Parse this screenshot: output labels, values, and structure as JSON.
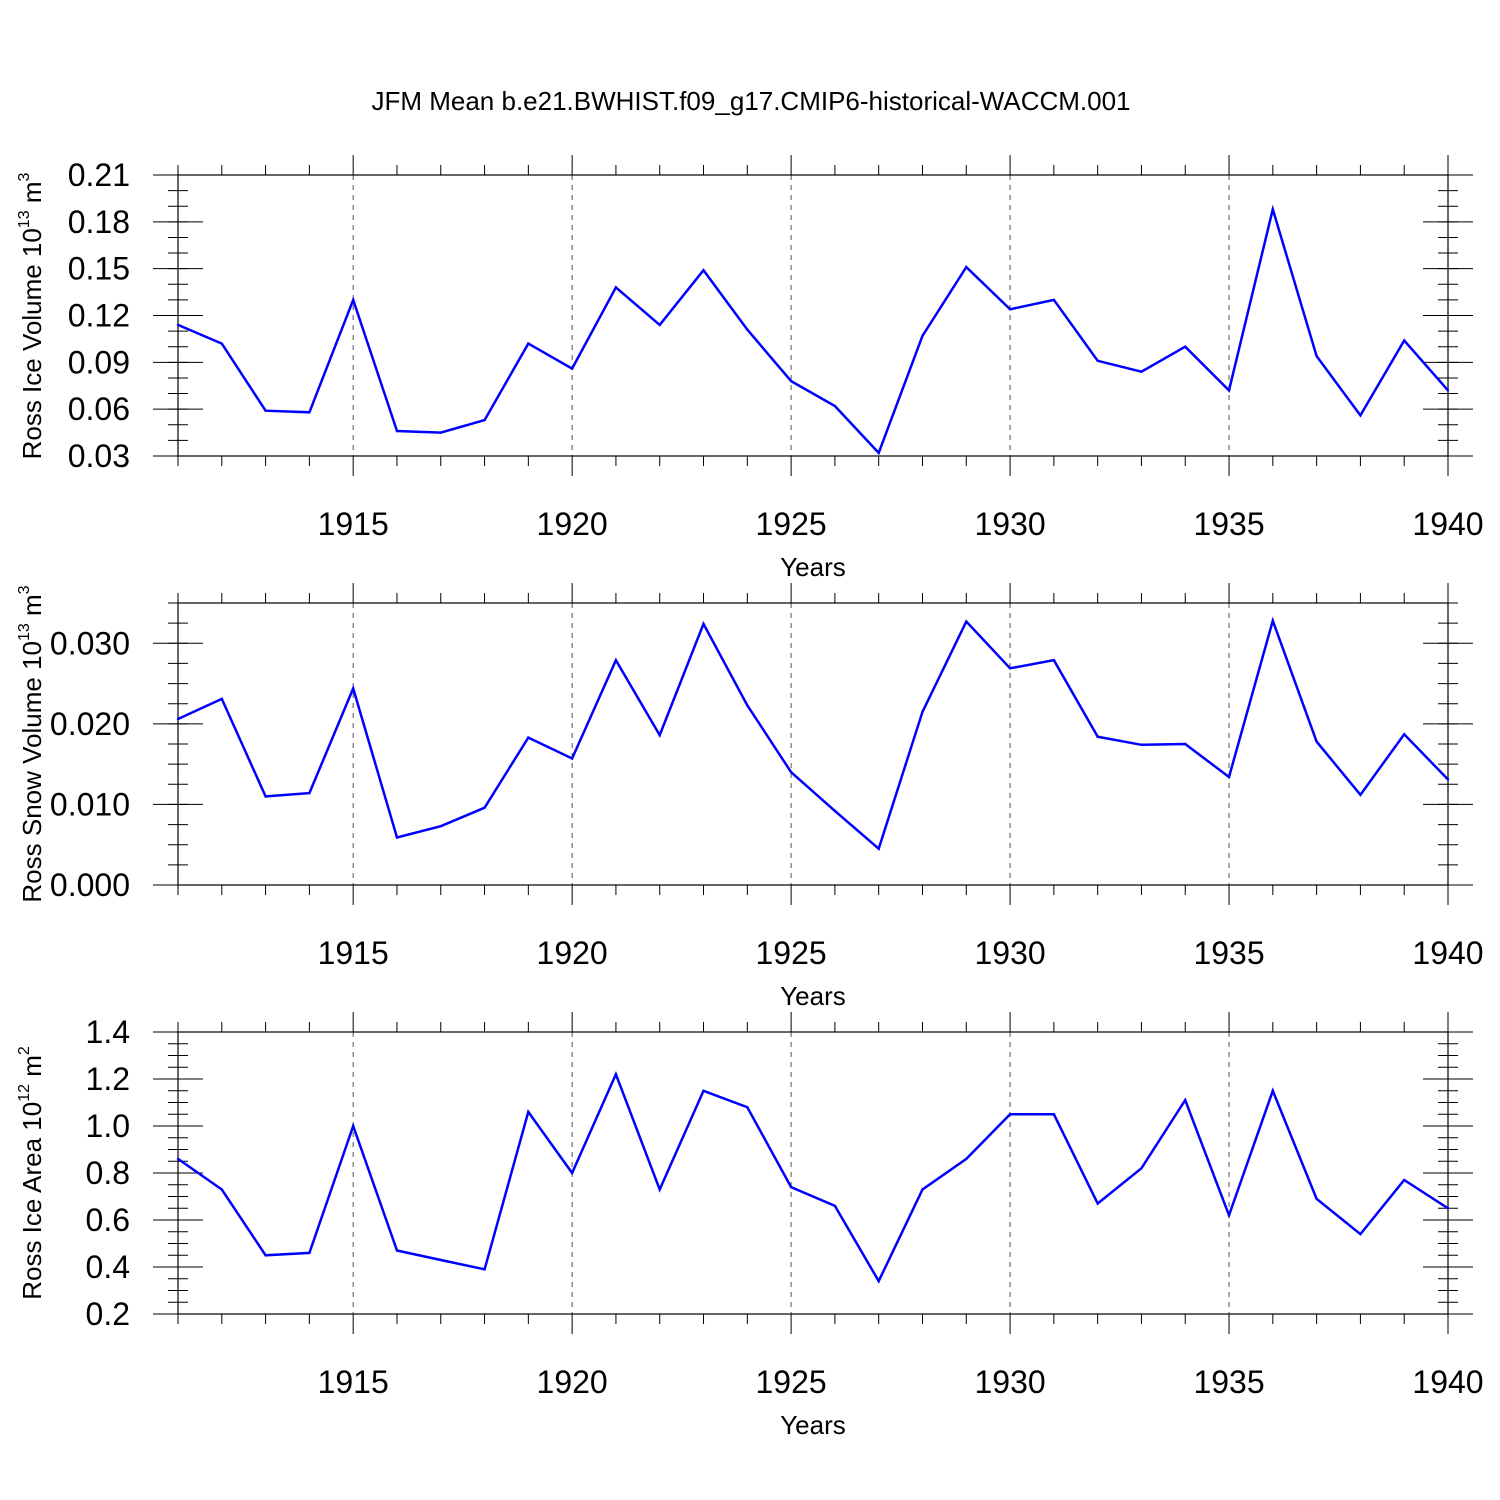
{
  "figure": {
    "title": "JFM Mean b.e21.BWHIST.f09_g17.CMIP6-historical-WACCM.001"
  },
  "chart_data": [
    {
      "type": "line",
      "ylabel": {
        "text": "Ross Ice Volume 10",
        "sup": "13",
        "unit": " m",
        "unit_sup": "3"
      },
      "xlabel": "Years",
      "xlim": [
        1911,
        1940
      ],
      "ylim": [
        0.03,
        0.21
      ],
      "yticks": [
        0.03,
        0.06,
        0.09,
        0.12,
        0.15,
        0.18,
        0.21
      ],
      "ytick_labels": [
        "0.03",
        "0.06",
        "0.09",
        "0.12",
        "0.15",
        "0.18",
        "0.21"
      ],
      "yminor_step": 0.01,
      "xticks": [
        1915,
        1920,
        1925,
        1930,
        1935,
        1940
      ],
      "xtick_labels": [
        "1915",
        "1920",
        "1925",
        "1930",
        "1935",
        "1940"
      ],
      "grid": "vertical dashed at major x ticks",
      "line_color": "#0000ff",
      "x": [
        1911,
        1912,
        1913,
        1914,
        1915,
        1916,
        1917,
        1918,
        1919,
        1920,
        1921,
        1922,
        1923,
        1924,
        1925,
        1926,
        1927,
        1928,
        1929,
        1930,
        1931,
        1932,
        1933,
        1934,
        1935,
        1936,
        1937,
        1938,
        1939,
        1940
      ],
      "values": [
        0.114,
        0.102,
        0.059,
        0.058,
        0.13,
        0.046,
        0.045,
        0.053,
        0.102,
        0.086,
        0.138,
        0.114,
        0.149,
        0.111,
        0.078,
        0.062,
        0.032,
        0.107,
        0.151,
        0.124,
        0.13,
        0.091,
        0.084,
        0.1,
        0.072,
        0.188,
        0.094,
        0.056,
        0.104,
        0.072
      ]
    },
    {
      "type": "line",
      "ylabel": {
        "text": "Ross Snow Volume 10",
        "sup": "13",
        "unit": " m",
        "unit_sup": "3"
      },
      "xlabel": "Years",
      "xlim": [
        1911,
        1940
      ],
      "ylim": [
        0.0,
        0.035
      ],
      "yticks": [
        0.0,
        0.01,
        0.02,
        0.03
      ],
      "ytick_labels": [
        "0.000",
        "0.010",
        "0.020",
        "0.030"
      ],
      "yminor_step": 0.0025,
      "xticks": [
        1915,
        1920,
        1925,
        1930,
        1935,
        1940
      ],
      "xtick_labels": [
        "1915",
        "1920",
        "1925",
        "1930",
        "1935",
        "1940"
      ],
      "grid": "vertical dashed at major x ticks",
      "line_color": "#0000ff",
      "x": [
        1911,
        1912,
        1913,
        1914,
        1915,
        1916,
        1917,
        1918,
        1919,
        1920,
        1921,
        1922,
        1923,
        1924,
        1925,
        1926,
        1927,
        1928,
        1929,
        1930,
        1931,
        1932,
        1933,
        1934,
        1935,
        1936,
        1937,
        1938,
        1939,
        1940
      ],
      "values": [
        0.0206,
        0.0231,
        0.011,
        0.0114,
        0.0244,
        0.0059,
        0.0073,
        0.0096,
        0.0183,
        0.0157,
        0.0279,
        0.0186,
        0.0324,
        0.0223,
        0.014,
        0.0092,
        0.0045,
        0.0215,
        0.0327,
        0.0269,
        0.0279,
        0.0184,
        0.0174,
        0.0175,
        0.0134,
        0.0328,
        0.0178,
        0.0112,
        0.0187,
        0.0131
      ]
    },
    {
      "type": "line",
      "ylabel": {
        "text": "Ross Ice Area 10",
        "sup": "12",
        "unit": " m",
        "unit_sup": "2"
      },
      "xlabel": "Years",
      "xlim": [
        1911,
        1940
      ],
      "ylim": [
        0.2,
        1.4
      ],
      "yticks": [
        0.2,
        0.4,
        0.6,
        0.8,
        1.0,
        1.2,
        1.4
      ],
      "ytick_labels": [
        "0.2",
        "0.4",
        "0.6",
        "0.8",
        "1.0",
        "1.2",
        "1.4"
      ],
      "yminor_step": 0.05,
      "xticks": [
        1915,
        1920,
        1925,
        1930,
        1935,
        1940
      ],
      "xtick_labels": [
        "1915",
        "1920",
        "1925",
        "1930",
        "1935",
        "1940"
      ],
      "grid": "vertical dashed at major x ticks",
      "line_color": "#0000ff",
      "x": [
        1911,
        1912,
        1913,
        1914,
        1915,
        1916,
        1917,
        1918,
        1919,
        1920,
        1921,
        1922,
        1923,
        1924,
        1925,
        1926,
        1927,
        1928,
        1929,
        1930,
        1931,
        1932,
        1933,
        1934,
        1935,
        1936,
        1937,
        1938,
        1939,
        1940
      ],
      "values": [
        0.86,
        0.73,
        0.45,
        0.46,
        1.0,
        0.47,
        0.43,
        0.39,
        1.06,
        0.8,
        1.22,
        0.73,
        1.15,
        1.08,
        0.74,
        0.66,
        0.34,
        0.73,
        0.86,
        1.05,
        1.05,
        0.67,
        0.82,
        1.11,
        0.62,
        1.15,
        0.69,
        0.54,
        0.77,
        0.65
      ]
    }
  ]
}
